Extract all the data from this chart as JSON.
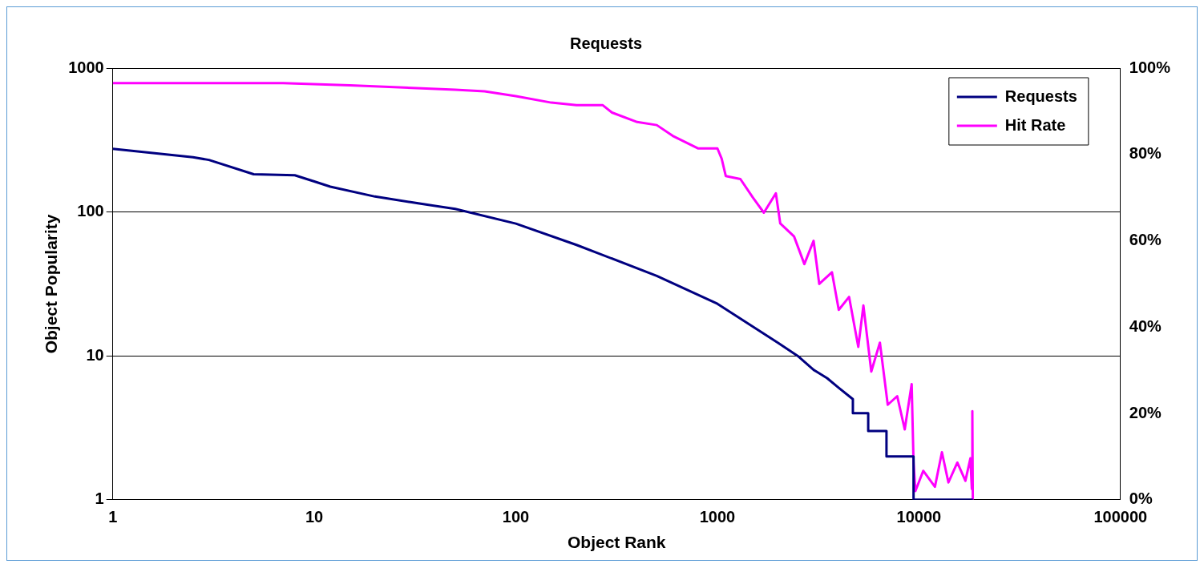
{
  "chart_data": {
    "type": "line",
    "title": "Requests",
    "xlabel": "Object Rank",
    "ylabel": "Object Popularity",
    "log": "xy",
    "xlim": [
      1,
      100000
    ],
    "xticks": [
      1,
      10,
      100,
      1000,
      10000,
      100000
    ],
    "ylim": [
      1,
      1000
    ],
    "yticks": [
      1,
      10,
      100,
      1000
    ],
    "y2lim": [
      0,
      100
    ],
    "y2ticks": [
      {
        "value": 0,
        "label": "0%"
      },
      {
        "value": 20,
        "label": "20%"
      },
      {
        "value": 40,
        "label": "40%"
      },
      {
        "value": 60,
        "label": "60%"
      },
      {
        "value": 80,
        "label": "80%"
      },
      {
        "value": 100,
        "label": "100%"
      }
    ],
    "grid": "y",
    "legend": "top right",
    "marker": "none",
    "line_style": "solid",
    "series": [
      {
        "name": "Requests",
        "color": "#000080",
        "x": [
          1,
          2.5,
          3,
          5,
          8,
          10,
          12,
          20,
          30,
          50,
          100,
          200,
          500,
          1000,
          2000,
          2500,
          3000,
          3500,
          4000,
          4700,
          4700,
          5600,
          5600,
          6900,
          6900,
          9400,
          9400,
          18500
        ],
        "values": [
          275,
          240,
          230,
          183,
          180,
          163,
          150,
          128,
          117,
          105,
          83,
          59,
          36,
          23,
          12.3,
          10,
          8,
          7,
          6,
          5,
          4,
          4,
          3,
          3,
          2,
          2,
          1,
          1
        ]
      },
      {
        "name": "Hit Rate",
        "color": "#ff00ff",
        "axis": "y2",
        "x": [
          1,
          7,
          15,
          50,
          70,
          100,
          150,
          200,
          270,
          300,
          400,
          500,
          600,
          800,
          1000,
          1050,
          1100,
          1300,
          1500,
          1700,
          1950,
          2050,
          2400,
          2700,
          3000,
          3200,
          3700,
          4000,
          4500,
          5000,
          5300,
          5800,
          6400,
          7000,
          7800,
          8500,
          9200,
          9400,
          9600,
          10500,
          12000,
          13000,
          14000,
          15500,
          17000,
          18000,
          18300,
          18400,
          18500
        ],
        "values": [
          96.5,
          96.5,
          96,
          95,
          94.6,
          93.5,
          92,
          91.4,
          91.4,
          89.7,
          87.5,
          86.8,
          84.3,
          81.4,
          81.4,
          79,
          75,
          74.3,
          70,
          66.5,
          71,
          64,
          61,
          54.6,
          60,
          50,
          52.7,
          44,
          47,
          35.4,
          45,
          29.7,
          36.4,
          22,
          24,
          16.3,
          26.8,
          8.6,
          2,
          6.7,
          3,
          11,
          4,
          8.6,
          4.4,
          9.6,
          2.5,
          20.5,
          0
        ]
      }
    ]
  }
}
